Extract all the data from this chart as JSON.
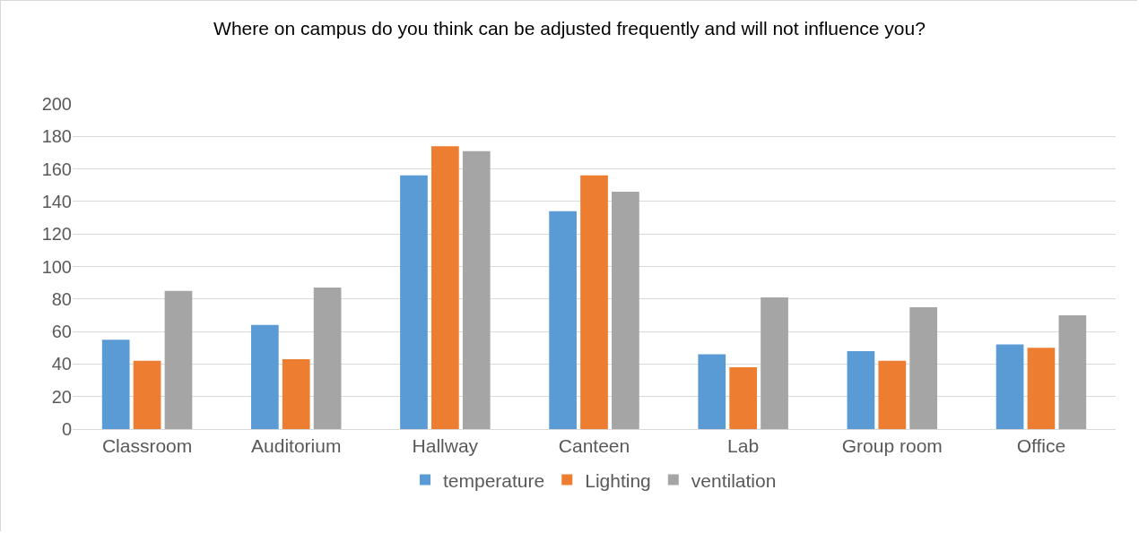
{
  "chart_data": {
    "type": "bar",
    "title": "Where on campus do you think can be adjusted frequently and will not influence you?",
    "categories": [
      "Classroom",
      "Auditorium",
      "Hallway",
      "Canteen",
      "Lab",
      "Group room",
      "Office"
    ],
    "series": [
      {
        "name": "temperature",
        "color": "#5b9bd5",
        "values": [
          55,
          64,
          156,
          134,
          46,
          48,
          52
        ]
      },
      {
        "name": "Lighting",
        "color": "#ed7d31",
        "values": [
          42,
          43,
          174,
          156,
          38,
          42,
          50
        ]
      },
      {
        "name": "ventilation",
        "color": "#a5a5a5",
        "values": [
          85,
          87,
          171,
          146,
          81,
          75,
          70
        ]
      }
    ],
    "ylim": [
      0,
      200
    ],
    "yticks": [
      0,
      20,
      40,
      60,
      80,
      100,
      120,
      140,
      160,
      180,
      200
    ],
    "grid": "y",
    "legend": "bottom"
  }
}
